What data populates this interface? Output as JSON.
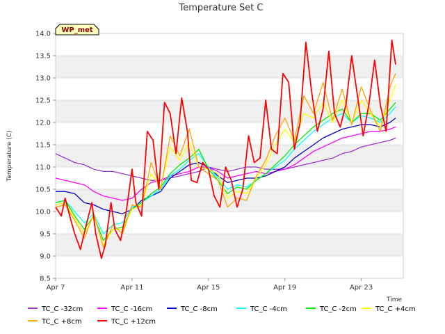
{
  "chart_data": {
    "type": "line",
    "title": "Temperature Set C",
    "xlabel": "Time",
    "ylabel": "Temperature (C)",
    "badge": "WP_met",
    "x_range_days": [
      0,
      18.2
    ],
    "ylim": [
      8.5,
      14.0
    ],
    "yticks": [
      "8.5",
      "9.0",
      "9.5",
      "10.0",
      "10.5",
      "11.0",
      "11.5",
      "12.0",
      "12.5",
      "13.0",
      "13.5",
      "14.0"
    ],
    "xticks": [
      {
        "label": "Apr 7",
        "day": 0
      },
      {
        "label": "Apr 11",
        "day": 4
      },
      {
        "label": "Apr 15",
        "day": 8
      },
      {
        "label": "Apr 19",
        "day": 12
      },
      {
        "label": "Apr 23",
        "day": 16
      }
    ],
    "grid": "horizontal bands",
    "legend_position": "bottom",
    "x_unit": "days after Apr 7",
    "series": [
      {
        "name": "TC_C -32cm",
        "color": "#9932cc",
        "x": [
          0,
          0.5,
          1,
          1.5,
          2,
          2.5,
          3,
          3.5,
          4,
          4.5,
          5,
          5.5,
          6,
          6.5,
          7,
          7.5,
          8,
          8.5,
          9,
          9.5,
          10,
          10.5,
          11,
          11.5,
          12,
          12.5,
          13,
          13.5,
          14,
          14.5,
          15,
          15.5,
          16,
          16.5,
          17,
          17.5,
          17.8
        ],
        "y": [
          11.3,
          11.2,
          11.1,
          11.05,
          10.95,
          10.9,
          10.9,
          10.85,
          10.8,
          10.75,
          10.7,
          10.7,
          10.75,
          10.8,
          10.85,
          10.9,
          11.0,
          10.95,
          10.9,
          10.95,
          11.0,
          11.0,
          10.95,
          10.95,
          10.95,
          11.0,
          11.05,
          11.1,
          11.15,
          11.2,
          11.3,
          11.35,
          11.45,
          11.5,
          11.55,
          11.6,
          11.65
        ]
      },
      {
        "name": "TC_C -16cm",
        "color": "#ff00ff",
        "x": [
          0,
          0.5,
          1,
          1.5,
          2,
          2.5,
          3,
          3.5,
          4,
          4.5,
          5,
          5.5,
          6,
          6.5,
          7,
          7.5,
          8,
          8.5,
          9,
          9.5,
          10,
          10.5,
          11,
          11.5,
          12,
          12.5,
          13,
          13.5,
          14,
          14.5,
          15,
          15.5,
          16,
          16.5,
          17,
          17.5,
          17.8
        ],
        "y": [
          10.75,
          10.7,
          10.65,
          10.6,
          10.45,
          10.35,
          10.3,
          10.25,
          10.3,
          10.5,
          10.65,
          10.7,
          10.8,
          10.85,
          10.9,
          11.0,
          11.0,
          10.9,
          10.75,
          10.8,
          10.85,
          10.9,
          10.85,
          10.9,
          10.95,
          11.05,
          11.2,
          11.35,
          11.45,
          11.55,
          11.65,
          11.7,
          11.75,
          11.8,
          11.8,
          11.85,
          11.9
        ]
      },
      {
        "name": "TC_C -8cm",
        "color": "#0000cd",
        "x": [
          0,
          0.5,
          1,
          1.5,
          2,
          2.5,
          3,
          3.5,
          4,
          4.5,
          5,
          5.5,
          6,
          6.5,
          7,
          7.5,
          8,
          8.5,
          9,
          9.5,
          10,
          10.5,
          11,
          11.5,
          12,
          12.5,
          13,
          13.5,
          14,
          14.5,
          15,
          15.5,
          16,
          16.5,
          17,
          17.5,
          17.8
        ],
        "y": [
          10.45,
          10.45,
          10.4,
          10.2,
          10.15,
          10.05,
          10.0,
          9.95,
          10.05,
          10.25,
          10.35,
          10.45,
          10.75,
          10.9,
          11.05,
          11.1,
          11.0,
          10.8,
          10.65,
          10.7,
          10.75,
          10.75,
          10.8,
          10.9,
          11.0,
          11.2,
          11.35,
          11.5,
          11.65,
          11.75,
          11.85,
          11.9,
          11.95,
          11.95,
          11.9,
          12.0,
          12.1
        ]
      },
      {
        "name": "TC_C -4cm",
        "color": "#00ffff",
        "x": [
          0,
          0.5,
          1,
          1.5,
          2,
          2.5,
          3,
          3.5,
          4,
          4.5,
          5,
          5.5,
          6,
          6.5,
          7,
          7.5,
          8,
          8.5,
          9,
          9.5,
          10,
          10.5,
          11,
          11.5,
          12,
          12.5,
          13,
          13.5,
          14,
          14.5,
          15,
          15.5,
          16,
          16.5,
          17,
          17.5,
          17.8
        ],
        "y": [
          10.2,
          10.25,
          10.0,
          9.75,
          9.95,
          9.5,
          9.7,
          9.75,
          10.1,
          10.2,
          10.35,
          10.5,
          10.8,
          10.95,
          11.15,
          11.3,
          11.0,
          10.75,
          10.5,
          10.6,
          10.55,
          10.7,
          10.85,
          11.0,
          11.15,
          11.4,
          11.6,
          11.8,
          11.95,
          12.1,
          12.2,
          12.0,
          12.15,
          12.1,
          12.0,
          12.2,
          12.35
        ]
      },
      {
        "name": "TC_C -2cm",
        "color": "#00ee00",
        "x": [
          0,
          0.5,
          1,
          1.5,
          2,
          2.5,
          3,
          3.5,
          4,
          4.5,
          5,
          5.5,
          6,
          6.5,
          7,
          7.5,
          8,
          8.5,
          9,
          9.5,
          10,
          10.5,
          11,
          11.5,
          12,
          12.5,
          13,
          13.5,
          14,
          14.5,
          15,
          15.5,
          16,
          16.5,
          17,
          17.5,
          17.8
        ],
        "y": [
          10.2,
          10.25,
          9.9,
          9.6,
          9.9,
          9.35,
          9.6,
          9.65,
          10.05,
          10.2,
          10.4,
          10.55,
          10.85,
          11.05,
          11.2,
          11.4,
          10.95,
          10.7,
          10.4,
          10.55,
          10.5,
          10.7,
          10.85,
          11.05,
          11.25,
          11.5,
          11.7,
          11.9,
          12.05,
          12.2,
          12.3,
          12.0,
          12.2,
          12.2,
          12.05,
          12.3,
          12.45
        ]
      },
      {
        "name": "TC_C +4cm",
        "color": "#ffff00",
        "x": [
          0,
          0.5,
          1,
          1.5,
          2,
          2.5,
          3,
          3.5,
          4,
          4.5,
          5,
          5.5,
          6,
          6.5,
          7,
          7.5,
          8,
          8.5,
          9,
          9.5,
          10,
          10.5,
          11,
          11.5,
          12,
          12.5,
          13,
          13.5,
          14,
          14.5,
          15,
          15.5,
          16,
          16.5,
          17,
          17.5,
          17.8
        ],
        "y": [
          10.15,
          10.2,
          9.85,
          9.5,
          9.9,
          9.25,
          9.6,
          9.6,
          10.05,
          10.15,
          10.85,
          10.55,
          11.45,
          11.15,
          11.55,
          11.0,
          10.95,
          10.85,
          10.3,
          10.45,
          10.4,
          10.75,
          11.05,
          11.5,
          11.85,
          11.55,
          12.2,
          12.1,
          12.45,
          12.0,
          12.5,
          12.0,
          12.5,
          12.2,
          11.9,
          12.5,
          12.85
        ]
      },
      {
        "name": "TC_C +8cm",
        "color": "#ffa500",
        "x": [
          0,
          0.5,
          1,
          1.5,
          2,
          2.5,
          3,
          3.5,
          4,
          4.5,
          5,
          5.5,
          6,
          6.5,
          7,
          7.5,
          8,
          8.5,
          9,
          9.5,
          10,
          10.5,
          11,
          11.5,
          12,
          12.5,
          13,
          13.5,
          14,
          14.5,
          15,
          15.5,
          16,
          16.5,
          17,
          17.5,
          17.8
        ],
        "y": [
          10.1,
          10.15,
          9.8,
          9.4,
          9.95,
          9.2,
          9.7,
          9.5,
          10.15,
          10.1,
          11.1,
          10.5,
          11.7,
          11.25,
          11.85,
          11.0,
          10.85,
          10.7,
          10.1,
          10.3,
          10.25,
          10.8,
          11.15,
          11.7,
          12.1,
          11.6,
          12.6,
          12.2,
          12.9,
          12.05,
          12.75,
          11.95,
          12.8,
          12.25,
          11.8,
          12.8,
          13.1
        ]
      },
      {
        "name": "TC_C +12cm",
        "color": "#ff0000",
        "x": [
          0,
          0.3,
          0.5,
          0.8,
          1,
          1.3,
          1.6,
          1.9,
          2.1,
          2.4,
          2.6,
          2.9,
          3.1,
          3.4,
          3.7,
          4.0,
          4.2,
          4.5,
          4.8,
          5.1,
          5.4,
          5.7,
          6.0,
          6.3,
          6.6,
          6.9,
          7.1,
          7.4,
          7.7,
          8.0,
          8.3,
          8.6,
          8.9,
          9.2,
          9.5,
          9.8,
          10.1,
          10.4,
          10.7,
          11.0,
          11.3,
          11.6,
          11.9,
          12.2,
          12.5,
          12.8,
          13.1,
          13.4,
          13.7,
          14.0,
          14.3,
          14.6,
          14.9,
          15.2,
          15.5,
          15.8,
          16.1,
          16.4,
          16.7,
          17.0,
          17.3,
          17.6,
          17.8
        ],
        "y": [
          10.1,
          9.9,
          10.3,
          9.8,
          9.5,
          9.15,
          9.7,
          10.2,
          9.5,
          8.95,
          9.25,
          10.2,
          9.6,
          9.35,
          10.0,
          10.95,
          10.2,
          9.9,
          11.8,
          11.6,
          10.5,
          12.45,
          12.2,
          11.3,
          12.55,
          11.8,
          10.7,
          10.65,
          11.1,
          10.95,
          10.35,
          10.1,
          11.0,
          10.7,
          10.1,
          10.5,
          11.7,
          11.1,
          11.2,
          12.5,
          11.4,
          11.3,
          13.1,
          12.9,
          11.4,
          12.0,
          13.8,
          12.7,
          11.8,
          12.3,
          13.6,
          12.2,
          11.9,
          12.4,
          13.5,
          12.6,
          11.7,
          12.4,
          13.4,
          12.4,
          11.8,
          13.85,
          13.3
        ]
      }
    ]
  }
}
